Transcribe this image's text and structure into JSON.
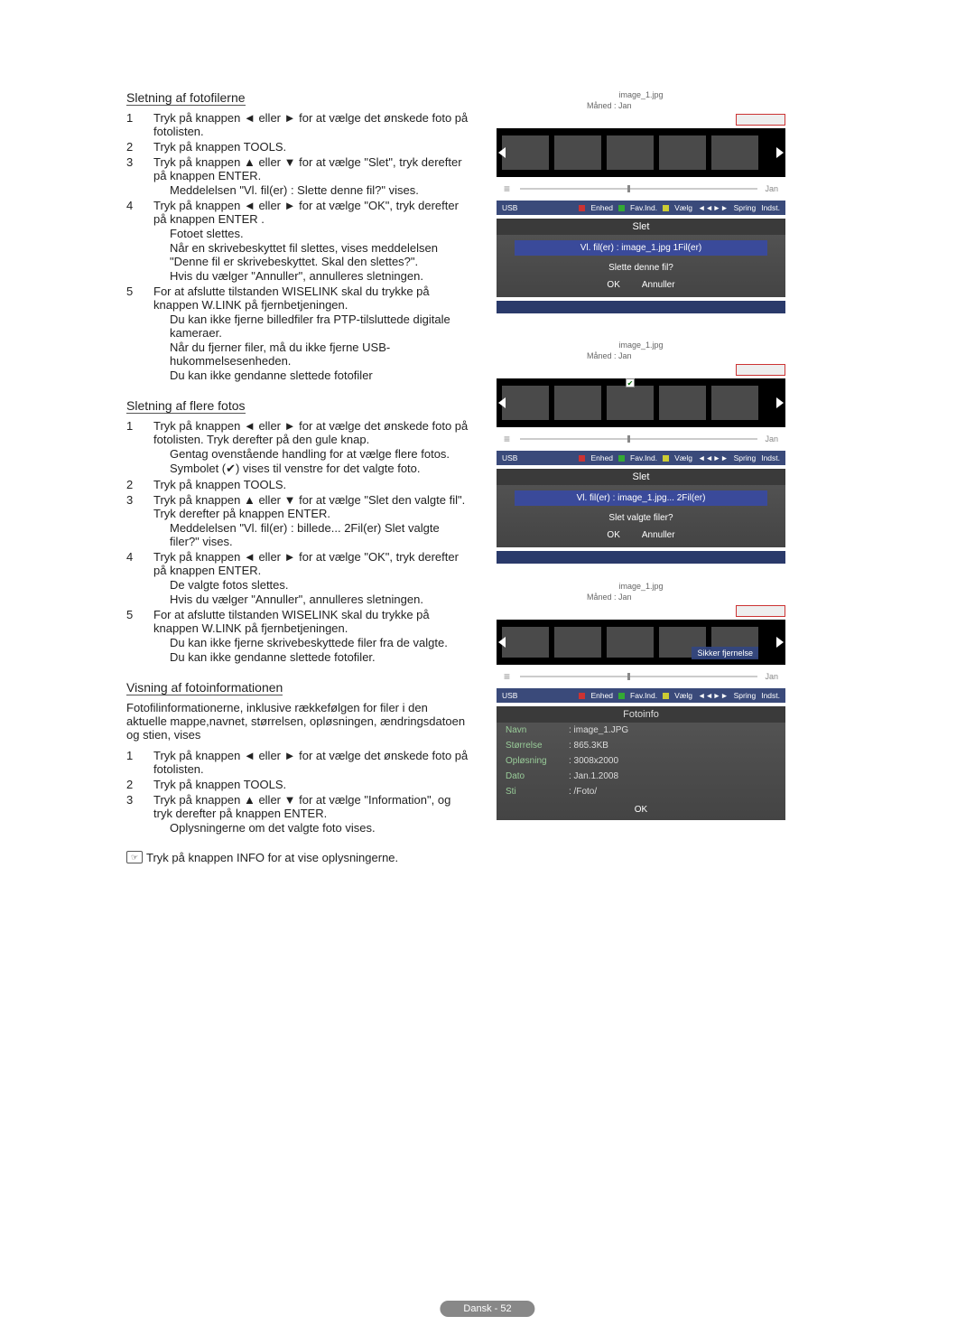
{
  "section1": {
    "title": "Sletning af fotofilerne",
    "steps": [
      {
        "n": "1",
        "txt": "Tryk på knappen ◄ eller ► for at vælge det ønskede foto på fotolisten."
      },
      {
        "n": "2",
        "txt": "Tryk på knappen TOOLS."
      },
      {
        "n": "3",
        "txt": "Tryk på knappen ▲ eller ▼ for at vælge \"Slet\", tryk derefter på knappen ENTER.",
        "subs": [
          "Meddelelsen \"Vl. fil(er) : Slette denne fil?\" vises."
        ]
      },
      {
        "n": "4",
        "txt": "Tryk på knappen ◄ eller ► for at vælge \"OK\", tryk derefter på knappen ENTER .",
        "subs": [
          "Fotoet slettes.",
          "Når en skrivebeskyttet fil slettes, vises meddelelsen \"Denne fil er skrivebeskyttet. Skal den slettes?\".",
          "Hvis du vælger \"Annuller\", annulleres sletningen."
        ]
      },
      {
        "n": "5",
        "txt": "For at afslutte tilstanden WISELINK skal du trykke på knappen W.LINK på fjernbetjeningen.",
        "subs": [
          "Du kan ikke fjerne billedfiler fra PTP-tilsluttede digitale kameraer.",
          "Når du fjerner filer, må du ikke fjerne USB-hukommelsesenheden.",
          "Du kan ikke gendanne slettede fotofiler"
        ]
      }
    ]
  },
  "section2": {
    "title": "Sletning af flere fotos",
    "steps": [
      {
        "n": "1",
        "txt": "Tryk på knappen ◄ eller ► for at vælge det ønskede foto på fotolisten.\nTryk derefter på den gule knap.",
        "subs": [
          "Gentag ovenstående handling for at vælge flere fotos.",
          "Symbolet (✔) vises til venstre for det valgte foto."
        ]
      },
      {
        "n": "2",
        "txt": "Tryk på knappen TOOLS."
      },
      {
        "n": "3",
        "txt": "Tryk på knappen ▲ eller ▼ for at vælge \"Slet den valgte fil\". Tryk derefter på knappen ENTER.",
        "subs": [
          "Meddelelsen \"Vl. fil(er) : billede... 2Fil(er) Slet valgte filer?\" vises."
        ]
      },
      {
        "n": "4",
        "txt": "Tryk på knappen ◄ eller ► for at vælge \"OK\", tryk derefter på knappen ENTER.",
        "subs": [
          "De valgte fotos slettes.",
          "Hvis du vælger \"Annuller\", annulleres sletningen."
        ]
      },
      {
        "n": "5",
        "txt": "For at afslutte tilstanden WISELINK skal du trykke på knappen W.LINK på fjernbetjeningen.",
        "subs": [
          "Du kan ikke fjerne skrivebeskyttede filer fra de valgte.",
          "Du kan ikke gendanne slettede fotofiler."
        ]
      }
    ]
  },
  "section3": {
    "title": "Visning af fotoinformationen",
    "intro": "Fotofilinformationerne, inklusive rækkefølgen for filer i den aktuelle mappe,navnet, størrelsen, opløsningen, ændringsdatoen og stien, vises",
    "steps": [
      {
        "n": "1",
        "txt": "Tryk på knappen ◄ eller ► for at vælge det ønskede foto på fotolisten."
      },
      {
        "n": "2",
        "txt": "Tryk på knappen TOOLS."
      },
      {
        "n": "3",
        "txt": "Tryk på knappen ▲ eller ▼ for at vælge \"Information\", og tryk derefter på knappen ENTER.",
        "subs": [
          "Oplysningerne om det valgte foto vises."
        ]
      }
    ],
    "note": "Tryk på knappen INFO for at vise oplysningerne."
  },
  "tv": {
    "file": "image_1.jpg",
    "meta": "Måned      : Jan",
    "month": "Jan",
    "usb": "USB",
    "bar": {
      "a": "Enhed",
      "b": "Fav.Ind.",
      "c": "Vælg",
      "d": "Spring",
      "e": "Indst."
    }
  },
  "dlg1": {
    "title": "Slet",
    "hl": "Vl. fil(er) : image_1.jpg      1Fil(er)",
    "msg": "Slette denne fil?",
    "ok": "OK",
    "cancel": "Annuller"
  },
  "dlg2": {
    "title": "Slet",
    "hl": "Vl. fil(er) : image_1.jpg...   2Fil(er)",
    "msg": "Slet valgte filer?",
    "ok": "OK",
    "cancel": "Annuller"
  },
  "dlg3": {
    "title": "Fotoinfo",
    "rows": [
      [
        "Navn",
        ": image_1.JPG"
      ],
      [
        "Størrelse",
        ": 865.3KB"
      ],
      [
        "Opløsning",
        ": 3008x2000"
      ],
      [
        "Dato",
        ": Jan.1.2008"
      ],
      [
        "Sti",
        ": /Foto/"
      ]
    ],
    "ok": "OK"
  },
  "overlay": "Sikker fjernelse",
  "footer": "Dansk - 52"
}
